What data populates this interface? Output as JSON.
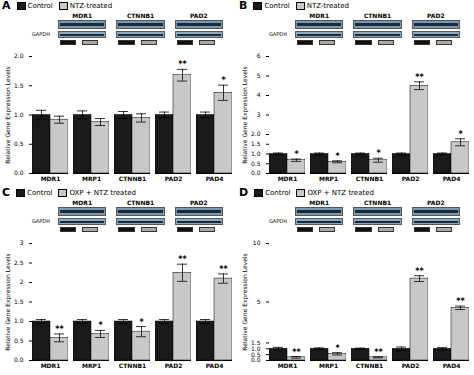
{
  "chart_data": [
    {
      "type": "bar",
      "title": "A",
      "categories": [
        "MDR1",
        "MRP1",
        "CTNNB1",
        "PAD2",
        "PAD4"
      ],
      "series": [
        {
          "name": "Control",
          "color": "#1a1a1a",
          "values": [
            1.0,
            1.0,
            1.0,
            1.0,
            1.0
          ],
          "errors": [
            0.08,
            0.07,
            0.06,
            0.05,
            0.05
          ]
        },
        {
          "name": "NTZ-treated",
          "color": "#c8c8c8",
          "values": [
            0.92,
            0.88,
            0.95,
            1.68,
            1.38
          ],
          "errors": [
            0.06,
            0.06,
            0.07,
            0.1,
            0.13
          ]
        }
      ],
      "ylabel": "Relative Gene Expression Levels",
      "ylim": [
        0,
        2.0
      ],
      "yticks": [
        {
          "value": 0,
          "label": "0.0"
        },
        0.5,
        {
          "value": 1,
          "label": "1.0"
        },
        1.5,
        {
          "value": 2,
          "label": "2.0"
        }
      ],
      "legend": "upper left",
      "grid": false,
      "annotations": {
        "blot": {
          "lanes": [
            "MDR1",
            "CTNNB1",
            "PAD2"
          ],
          "rows": [
            "GAPDH"
          ]
        },
        "markers": [
          {
            "category": "PAD2",
            "series": "NTZ-treated",
            "text": "**"
          },
          {
            "category": "PAD4",
            "series": "NTZ-treated",
            "text": "*"
          }
        ]
      }
    },
    {
      "type": "bar",
      "title": "B",
      "categories": [
        "MDR1",
        "MRP1",
        "CTNNB1",
        "PAD2",
        "PAD4"
      ],
      "series": [
        {
          "name": "Control",
          "color": "#1a1a1a",
          "values": [
            1.0,
            1.0,
            1.0,
            1.0,
            1.0
          ],
          "errors": [
            0.05,
            0.05,
            0.05,
            0.05,
            0.05
          ]
        },
        {
          "name": "NTZ-treated",
          "color": "#c8c8c8",
          "values": [
            0.68,
            0.6,
            0.68,
            4.5,
            1.6
          ],
          "errors": [
            0.06,
            0.05,
            0.1,
            0.2,
            0.18
          ]
        }
      ],
      "ylabel": "Relative Gene Expression Levels",
      "ylim": [
        0,
        6.0
      ],
      "yticks": [
        {
          "value": 0,
          "label": "0.0"
        },
        0.5,
        {
          "value": 1,
          "label": "1.0"
        },
        1.5,
        {
          "value": 2,
          "label": "2.0"
        },
        3,
        4,
        5,
        6
      ],
      "legend": "upper left",
      "grid": false,
      "annotations": {
        "blot": {
          "lanes": [
            "MDR1",
            "CTNNB1",
            "PAD2"
          ],
          "rows": [
            "GAPDH"
          ]
        },
        "markers": [
          {
            "category": "MDR1",
            "series": "NTZ-treated",
            "text": "*"
          },
          {
            "category": "MRP1",
            "series": "NTZ-treated",
            "text": "*"
          },
          {
            "category": "CTNNB1",
            "series": "NTZ-treated",
            "text": "*"
          },
          {
            "category": "PAD2",
            "series": "NTZ-treated",
            "text": "**"
          },
          {
            "category": "PAD4",
            "series": "NTZ-treated",
            "text": "*"
          }
        ]
      }
    },
    {
      "type": "bar",
      "title": "C",
      "categories": [
        "MDR1",
        "MRP1",
        "CTNNB1",
        "PAD2",
        "PAD4"
      ],
      "series": [
        {
          "name": "Control",
          "color": "#1a1a1a",
          "values": [
            1.0,
            1.0,
            1.0,
            1.0,
            1.0
          ],
          "errors": [
            0.05,
            0.05,
            0.05,
            0.05,
            0.05
          ]
        },
        {
          "name": "OXP + NTZ treated",
          "color": "#c8c8c8",
          "values": [
            0.58,
            0.68,
            0.74,
            2.25,
            2.1
          ],
          "errors": [
            0.1,
            0.09,
            0.13,
            0.22,
            0.12
          ]
        }
      ],
      "ylabel": "Relative Gene Expression Levels",
      "ylim": [
        0,
        3.0
      ],
      "yticks": [
        {
          "value": 0,
          "label": "0.0"
        },
        0.5,
        {
          "value": 1,
          "label": "1.0"
        },
        1.5,
        2,
        2.5,
        3
      ],
      "legend": "upper left",
      "grid": false,
      "annotations": {
        "blot": {
          "lanes": [
            "MDR1",
            "CTNNB1",
            "PAD2"
          ],
          "rows": [
            "GAPDH"
          ]
        },
        "markers": [
          {
            "category": "MDR1",
            "series": "OXP + NTZ treated",
            "text": "**"
          },
          {
            "category": "MRP1",
            "series": "OXP + NTZ treated",
            "text": "*"
          },
          {
            "category": "CTNNB1",
            "series": "OXP + NTZ treated",
            "text": "*"
          },
          {
            "category": "PAD2",
            "series": "OXP + NTZ treated",
            "text": "**"
          },
          {
            "category": "PAD4",
            "series": "OXP + NTZ treated",
            "text": "**"
          }
        ]
      }
    },
    {
      "type": "bar",
      "title": "D",
      "categories": [
        "MDR1",
        "MRP1",
        "CTNNB1",
        "PAD2",
        "PAD4"
      ],
      "series": [
        {
          "name": "Control",
          "color": "#1a1a1a",
          "values": [
            1.0,
            1.0,
            1.0,
            1.0,
            1.0
          ],
          "errors": [
            0.12,
            0.08,
            0.06,
            0.15,
            0.1
          ]
        },
        {
          "name": "OXP + NTZ treated",
          "color": "#c8c8c8",
          "values": [
            0.27,
            0.57,
            0.27,
            7.0,
            4.5
          ],
          "errors": [
            0.07,
            0.1,
            0.05,
            0.25,
            0.15
          ]
        }
      ],
      "ylabel": "Relative Gene Expression Levels",
      "ylim": [
        0,
        10.0
      ],
      "yticks": [
        {
          "value": 0,
          "label": "0.0"
        },
        0.5,
        {
          "value": 1,
          "label": "1.0"
        },
        1.5,
        5,
        10
      ],
      "legend": "upper left",
      "grid": false,
      "annotations": {
        "blot": {
          "lanes": [
            "MDR1",
            "CTNNB1",
            "PAD2"
          ],
          "rows": [
            "GAPDH"
          ]
        },
        "markers": [
          {
            "category": "MDR1",
            "series": "OXP + NTZ treated",
            "text": "**"
          },
          {
            "category": "MRP1",
            "series": "OXP + NTZ treated",
            "text": "*"
          },
          {
            "category": "CTNNB1",
            "series": "OXP + NTZ treated",
            "text": "**"
          },
          {
            "category": "PAD2",
            "series": "OXP + NTZ treated",
            "text": "**"
          },
          {
            "category": "PAD4",
            "series": "OXP + NTZ treated",
            "text": "**"
          }
        ]
      }
    }
  ]
}
